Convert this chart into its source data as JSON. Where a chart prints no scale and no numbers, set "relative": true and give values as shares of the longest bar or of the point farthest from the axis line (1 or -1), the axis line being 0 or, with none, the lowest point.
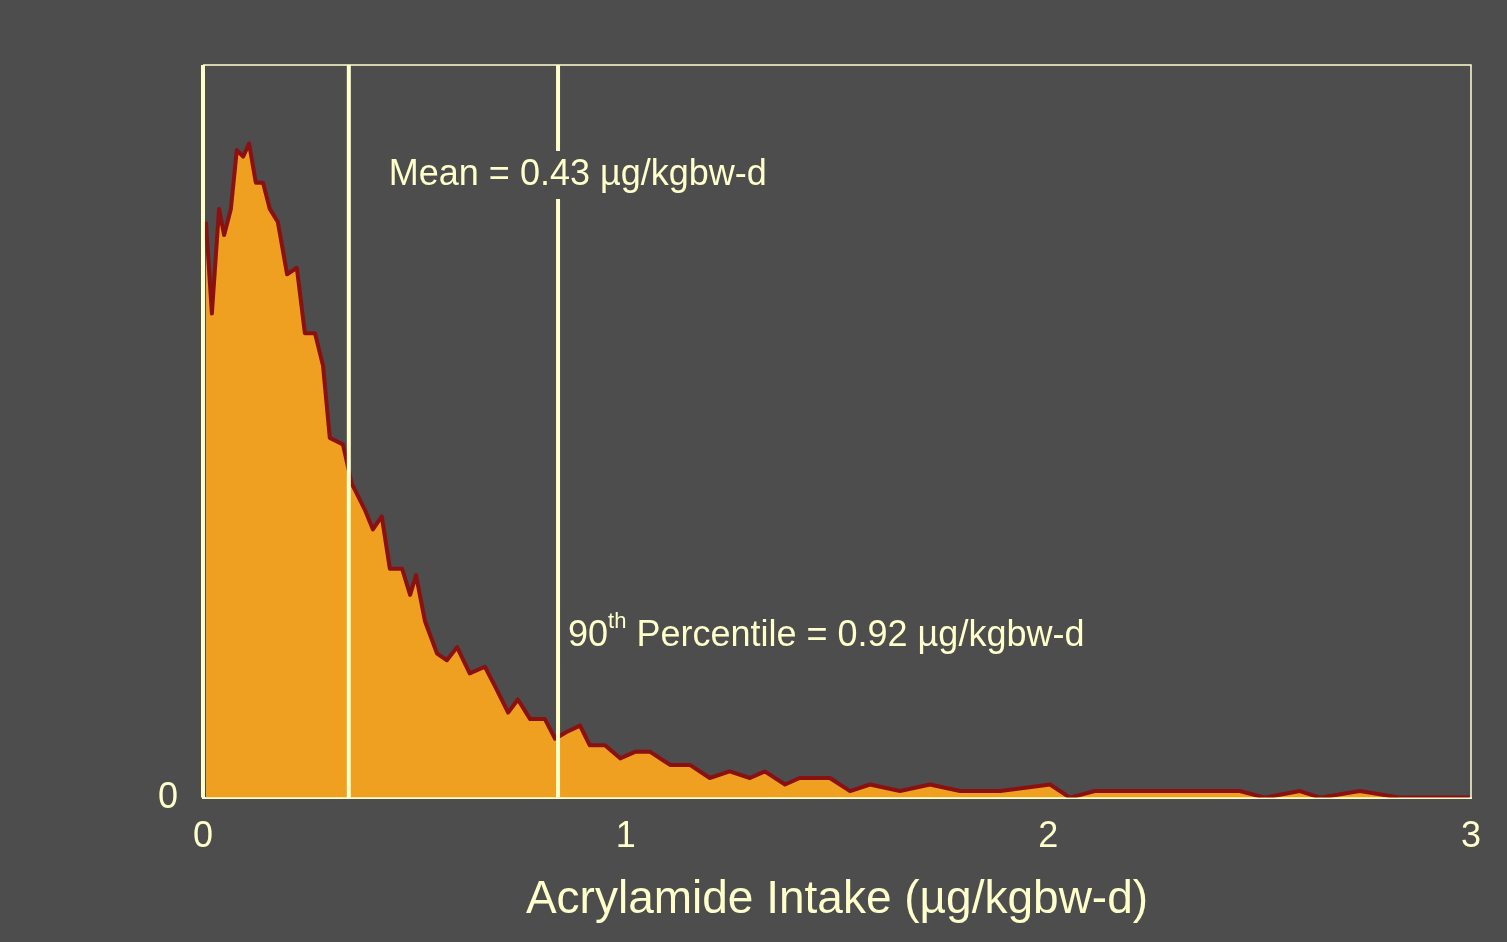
{
  "chart_data": {
    "type": "area",
    "xlabel": "Acrylamide Intake (µg/kgbw-d)",
    "relative": true,
    "xlim": [
      0,
      3
    ],
    "xticks": [
      0,
      1,
      2,
      3
    ],
    "series": [
      {
        "color": "#f0a020",
        "x": [
          0.007,
          0.021,
          0.038,
          0.05,
          0.066,
          0.08,
          0.095,
          0.109,
          0.125,
          0.142,
          0.158,
          0.177,
          0.199,
          0.222,
          0.241,
          0.265,
          0.284,
          0.3,
          0.331,
          0.352,
          0.383,
          0.402,
          0.423,
          0.442,
          0.471,
          0.49,
          0.504,
          0.525,
          0.554,
          0.577,
          0.601,
          0.631,
          0.667,
          0.691,
          0.722,
          0.745,
          0.774,
          0.809,
          0.833,
          0.859,
          0.892,
          0.915,
          0.951,
          0.987,
          1.022,
          1.058,
          1.105,
          1.152,
          1.199,
          1.246,
          1.294,
          1.329,
          1.377,
          1.412,
          1.483,
          1.531,
          1.578,
          1.649,
          1.72,
          1.791,
          1.886,
          2.004,
          2.051,
          2.11,
          2.193,
          2.264,
          2.359,
          2.453,
          2.512,
          2.595,
          2.643,
          2.737,
          2.832,
          2.95,
          2.997
        ],
        "values": [
          0.88,
          0.74,
          0.9,
          0.86,
          0.9,
          0.99,
          0.98,
          1.0,
          0.94,
          0.94,
          0.9,
          0.88,
          0.8,
          0.81,
          0.71,
          0.71,
          0.66,
          0.55,
          0.54,
          0.48,
          0.44,
          0.41,
          0.43,
          0.35,
          0.35,
          0.31,
          0.34,
          0.27,
          0.22,
          0.21,
          0.23,
          0.19,
          0.2,
          0.17,
          0.13,
          0.15,
          0.12,
          0.12,
          0.09,
          0.1,
          0.11,
          0.08,
          0.08,
          0.06,
          0.07,
          0.07,
          0.05,
          0.05,
          0.03,
          0.04,
          0.03,
          0.04,
          0.02,
          0.03,
          0.03,
          0.01,
          0.02,
          0.01,
          0.02,
          0.01,
          0.01,
          0.02,
          0.0,
          0.01,
          0.01,
          0.01,
          0.01,
          0.01,
          0.0,
          0.01,
          0.0,
          0.01,
          0.0,
          0.0,
          0.0
        ]
      }
    ],
    "ref_lines": [
      {
        "axis": "x",
        "value": 0.345,
        "color": "#ffffcc"
      },
      {
        "axis": "x",
        "value": 0.84,
        "color": "#ffffcc"
      }
    ],
    "annotations": [
      "Mean = 0.43 µg/kgbw-d",
      "90$^{th}$ Percentile = 0.92 µg/kgbw-d",
      {
        "text": "0",
        "x": 0,
        "y": 0
      }
    ]
  }
}
